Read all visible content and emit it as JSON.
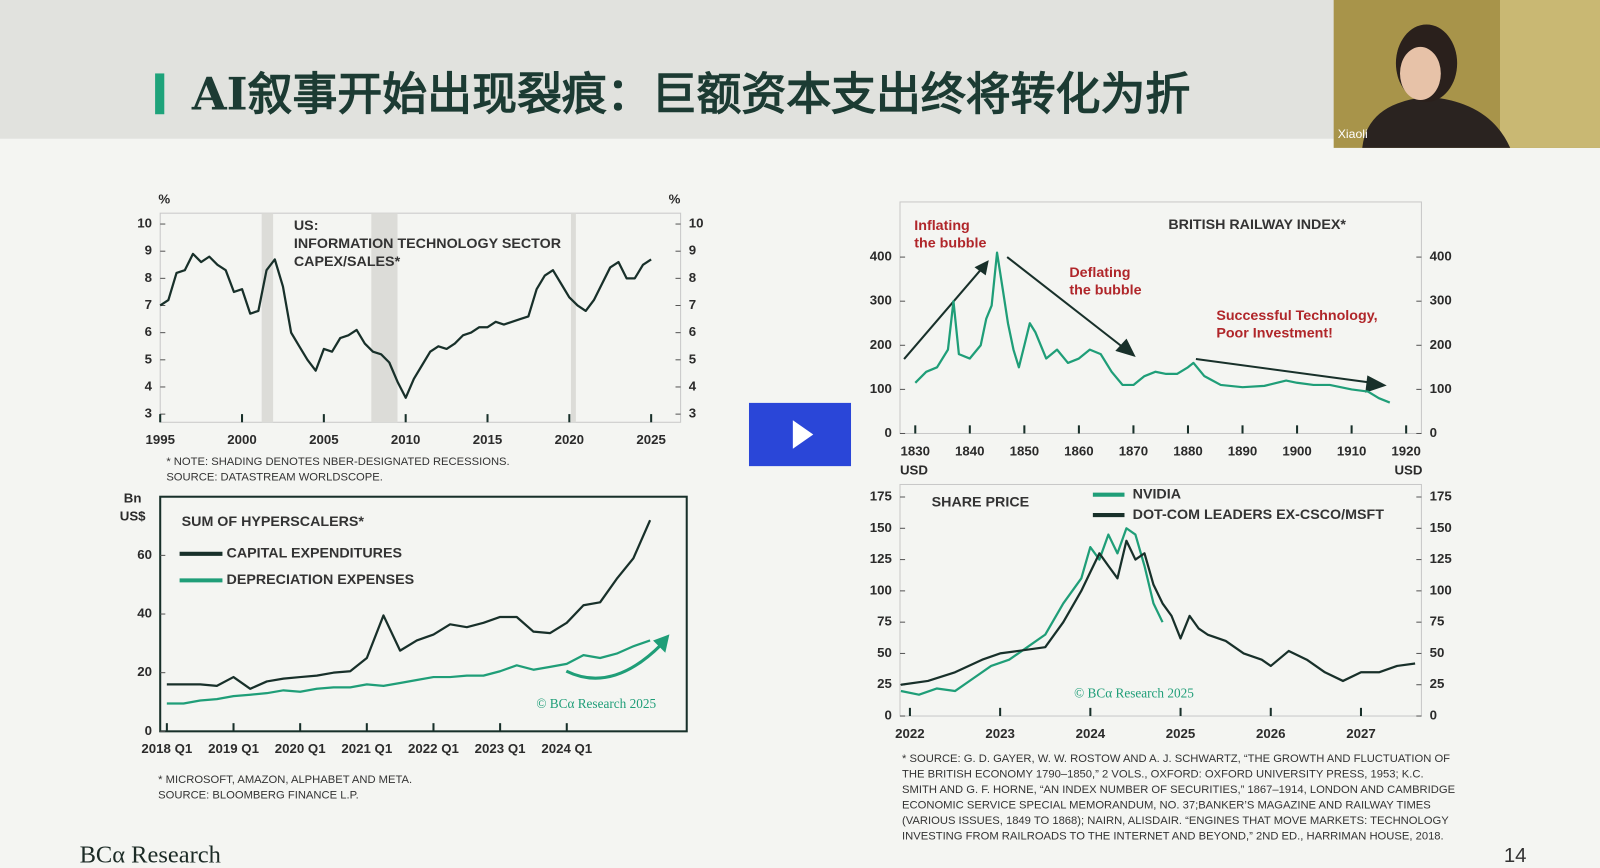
{
  "slide": {
    "title": "AI叙事开始出现裂痕：巨额资本支出终将转化为折",
    "footer": "BCα Research",
    "page": "14",
    "presenter": "Xiaoli"
  },
  "chart_data": [
    {
      "type": "line",
      "title": [
        "US:",
        "INFORMATION TECHNOLOGY SECTOR",
        "CAPEX/SALES*"
      ],
      "ylabel": "%",
      "y2label": "%",
      "x": [
        1995,
        1995.5,
        1996,
        1996.5,
        1997,
        1997.5,
        1998,
        1998.5,
        1999,
        1999.5,
        2000,
        2000.5,
        2001,
        2001.5,
        2002,
        2002.5,
        2003,
        2003.5,
        2004,
        2004.5,
        2005,
        2005.5,
        2006,
        2006.5,
        2007,
        2007.5,
        2008,
        2008.5,
        2009,
        2009.5,
        2010,
        2010.5,
        2011,
        2011.5,
        2012,
        2012.5,
        2013,
        2013.5,
        2014,
        2014.5,
        2015,
        2015.5,
        2016,
        2016.5,
        2017,
        2017.5,
        2018,
        2018.5,
        2019,
        2019.5,
        2020,
        2020.5,
        2021,
        2021.5,
        2022,
        2022.5,
        2023,
        2023.5,
        2024,
        2024.5,
        2025
      ],
      "series": [
        {
          "color": "#18302a",
          "values": [
            7.0,
            7.2,
            8.2,
            8.3,
            8.9,
            8.6,
            8.8,
            8.5,
            8.3,
            7.5,
            7.6,
            6.7,
            6.8,
            8.3,
            8.7,
            7.7,
            6.0,
            5.5,
            5.0,
            4.6,
            5.4,
            5.3,
            5.8,
            5.9,
            6.1,
            5.6,
            5.3,
            5.2,
            4.9,
            4.2,
            3.6,
            4.3,
            4.8,
            5.3,
            5.5,
            5.4,
            5.6,
            5.9,
            6.0,
            6.2,
            6.2,
            6.4,
            6.3,
            6.4,
            6.5,
            6.6,
            7.6,
            8.1,
            8.3,
            7.8,
            7.3,
            7.0,
            6.8,
            7.2,
            7.8,
            8.4,
            8.6,
            8.0,
            8.0,
            8.5,
            8.7
          ]
        }
      ],
      "recessions": [
        [
          2001.2,
          2001.9
        ],
        [
          2007.9,
          2009.5
        ],
        [
          2020.1,
          2020.4
        ]
      ],
      "xlim": [
        1995,
        2026.8
      ],
      "ylim": [
        2.7,
        10.4
      ],
      "xticks": [
        1995,
        2000,
        2005,
        2010,
        2015,
        2020,
        2025
      ],
      "yticks": [
        3,
        4,
        5,
        6,
        7,
        8,
        9,
        10
      ],
      "y2lim": [
        2.7,
        10.4
      ],
      "y2ticks": [
        3,
        4,
        5,
        6,
        7,
        8,
        9,
        10
      ],
      "notes": [
        "* NOTE: SHADING DENOTES NBER-DESIGNATED RECESSIONS.",
        "SOURCE: DATASTREAM WORLDSCOPE."
      ]
    },
    {
      "type": "line",
      "title": "SUM OF HYPERSCALERS*",
      "ylabel": [
        "Bn",
        "US$"
      ],
      "x": [
        2018,
        2018.25,
        2018.5,
        2018.75,
        2019,
        2019.25,
        2019.5,
        2019.75,
        2020,
        2020.25,
        2020.5,
        2020.75,
        2021,
        2021.25,
        2021.5,
        2021.75,
        2022,
        2022.25,
        2022.5,
        2022.75,
        2023,
        2023.25,
        2023.5,
        2023.75,
        2024,
        2024.25,
        2024.5,
        2024.75,
        2025,
        2025.25
      ],
      "series": [
        {
          "name": "CAPITAL EXPENDITURES",
          "color": "#18302a",
          "values": [
            16,
            16,
            16,
            15.5,
            18.5,
            14.5,
            17,
            18,
            18.5,
            19,
            20,
            20.5,
            25,
            39.5,
            27.5,
            31,
            33,
            36.5,
            35.5,
            37,
            39,
            39,
            34,
            33.5,
            37,
            43,
            44,
            52,
            59,
            72
          ]
        },
        {
          "name": "DEPRECIATION EXPENSES",
          "color": "#1f9e78",
          "values": [
            9.5,
            9.5,
            10.5,
            11,
            12,
            12.5,
            13,
            14,
            13.5,
            14.5,
            15,
            15,
            16,
            15.5,
            16.5,
            17.5,
            18.5,
            18.5,
            19,
            19,
            20.5,
            22.5,
            21,
            22,
            23,
            26,
            25,
            26.5,
            29,
            31
          ]
        }
      ],
      "xlim": [
        2017.9,
        2025.8
      ],
      "ylim": [
        0,
        80
      ],
      "xticks": [
        {
          "value": 2018,
          "label": "2018 Q1"
        },
        {
          "value": 2019,
          "label": "2019 Q1"
        },
        {
          "value": 2020,
          "label": "2020 Q1"
        },
        {
          "value": 2021,
          "label": "2021 Q1"
        },
        {
          "value": 2022,
          "label": "2022 Q1"
        },
        {
          "value": 2023,
          "label": "2023 Q1"
        },
        {
          "value": 2024,
          "label": "2024 Q1"
        }
      ],
      "yticks": [
        0,
        20,
        40,
        60
      ],
      "copyright": "© BCα Research 2025",
      "notes": [
        "* MICROSOFT, AMAZON, ALPHABET AND META.",
        "SOURCE: BLOOMBERG FINANCE L.P."
      ]
    },
    {
      "type": "line",
      "title": "BRITISH RAILWAY INDEX*",
      "ylabel": "USD",
      "y2label": "USD",
      "annotations": [
        [
          "Inflating",
          "the bubble"
        ],
        [
          "Deflating",
          "the bubble"
        ],
        [
          "Successful Technology,",
          "Poor Investment!"
        ]
      ],
      "x": [
        1830,
        1832,
        1834,
        1836,
        1837,
        1838,
        1840,
        1842,
        1843,
        1844,
        1845,
        1846,
        1847,
        1848,
        1849,
        1850,
        1851,
        1852,
        1854,
        1856,
        1858,
        1860,
        1862,
        1864,
        1866,
        1868,
        1870,
        1872,
        1874,
        1876,
        1878,
        1880,
        1881,
        1883,
        1886,
        1890,
        1894,
        1898,
        1900,
        1903,
        1906,
        1908,
        1910,
        1913,
        1915,
        1917
      ],
      "series": [
        {
          "color": "#1f9e78",
          "values": [
            115,
            140,
            150,
            190,
            300,
            180,
            170,
            200,
            260,
            290,
            410,
            330,
            250,
            190,
            150,
            200,
            250,
            230,
            170,
            190,
            160,
            170,
            190,
            180,
            140,
            110,
            110,
            130,
            140,
            135,
            135,
            150,
            160,
            130,
            110,
            105,
            108,
            120,
            115,
            110,
            110,
            105,
            100,
            95,
            80,
            70
          ]
        }
      ],
      "xlim": [
        1827.2,
        1922.8
      ],
      "ylim": [
        0,
        525
      ],
      "xticks": [
        1830,
        1840,
        1850,
        1860,
        1870,
        1880,
        1890,
        1900,
        1910,
        1920
      ],
      "yticks": [
        0,
        100,
        200,
        300,
        400
      ],
      "y2lim": [
        0,
        525
      ],
      "y2ticks": [
        0,
        100,
        200,
        300,
        400
      ],
      "notes": [
        "* SOURCE: G. D. GAYER, W. W. ROSTOW AND A. J. SCHWARTZ, “THE GROWTH AND FLUCTUATION OF",
        "THE BRITISH ECONOMY 1790–1850,” 2 VOLS., OXFORD: OXFORD UNIVERSITY PRESS, 1953; K.C.",
        "SMITH AND G. F. HORNE, “AN INDEX NUMBER OF SECURITIES,” 1867–1914, LONDON AND CAMBRIDGE",
        "ECONOMIC SERVICE SPECIAL MEMORANDUM, NO. 37;BANKER’S MAGAZINE AND RAILWAY TIMES",
        "(VARIOUS ISSUES, 1849 TO 1868); NAIRN, ALISDAIR. “ENGINES THAT MOVE MARKETS: TECHNOLOGY",
        "INVESTING FROM RAILROADS TO THE INTERNET AND BEYOND,” 2ND ED., HARRIMAN HOUSE, 2018."
      ]
    },
    {
      "type": "line",
      "title": "SHARE PRICE",
      "series": [
        {
          "name": "NVIDIA",
          "color": "#1f9e78",
          "x": [
            2021.9,
            2022.1,
            2022.3,
            2022.5,
            2022.7,
            2022.9,
            2023.1,
            2023.3,
            2023.5,
            2023.7,
            2023.9,
            2024.0,
            2024.1,
            2024.2,
            2024.3,
            2024.4,
            2024.5,
            2024.6,
            2024.7,
            2024.8
          ],
          "values": [
            20,
            17,
            22,
            20,
            30,
            40,
            45,
            55,
            65,
            90,
            110,
            135,
            125,
            145,
            130,
            150,
            145,
            120,
            90,
            75
          ]
        },
        {
          "name": "DOT-COM LEADERS EX-CSCO/MSFT",
          "color": "#18302a",
          "x": [
            2021.9,
            2022.2,
            2022.5,
            2022.8,
            2023.0,
            2023.2,
            2023.5,
            2023.7,
            2023.9,
            2024.0,
            2024.1,
            2024.2,
            2024.3,
            2024.4,
            2024.5,
            2024.6,
            2024.7,
            2024.8,
            2024.9,
            2025.0,
            2025.1,
            2025.2,
            2025.3,
            2025.5,
            2025.7,
            2025.9,
            2026.0,
            2026.2,
            2026.4,
            2026.6,
            2026.8,
            2027.0,
            2027.2,
            2027.4,
            2027.6
          ],
          "values": [
            25,
            28,
            35,
            45,
            50,
            52,
            55,
            75,
            100,
            115,
            130,
            120,
            110,
            140,
            125,
            130,
            105,
            90,
            80,
            62,
            80,
            70,
            65,
            60,
            50,
            45,
            40,
            52,
            45,
            35,
            28,
            35,
            35,
            40,
            42
          ]
        }
      ],
      "xlim": [
        2021.89,
        2027.67
      ],
      "ylim": [
        0,
        185
      ],
      "xticks": [
        2022,
        2023,
        2024,
        2025,
        2026,
        2027
      ],
      "yticks": [
        0,
        25,
        50,
        75,
        100,
        125,
        150,
        175
      ],
      "y2lim": [
        0,
        185
      ],
      "y2ticks": [
        0,
        25,
        50,
        75,
        100,
        125,
        150,
        175
      ],
      "copyright": "© BCα Research 2025"
    }
  ]
}
